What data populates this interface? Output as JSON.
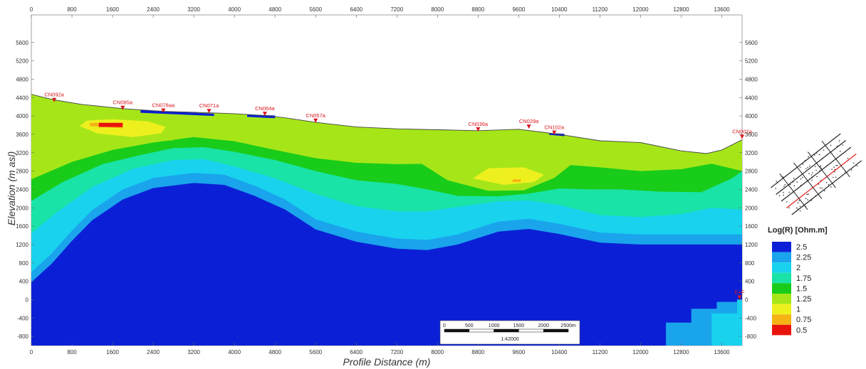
{
  "chart_data": {
    "type": "heatmap",
    "xlabel": "Profile Distance (m)",
    "ylabel": "Elevation (m asl)",
    "xlim": [
      0,
      14000
    ],
    "ylim": [
      -1000,
      6200
    ],
    "x_ticks": [
      0,
      800,
      1600,
      2400,
      3200,
      4000,
      4800,
      5600,
      6400,
      7200,
      8000,
      8800,
      9600,
      10400,
      11200,
      12000,
      12800,
      13600
    ],
    "y_ticks": [
      -800,
      -400,
      0,
      400,
      800,
      1200,
      1600,
      2000,
      2400,
      2800,
      3200,
      3600,
      4000,
      4400,
      4800,
      5200,
      5600
    ],
    "grid": false,
    "colorbar": {
      "title": "Log(R) [Ohm.m]",
      "labels": [
        "2.5",
        "2.25",
        "2",
        "1.75",
        "1.5",
        "1.25",
        "1",
        "0.75",
        "0.5"
      ],
      "colors": [
        "#0b20d6",
        "#1aa4ec",
        "#19d2ee",
        "#19e3a6",
        "#19cc19",
        "#a6e619",
        "#eef01e",
        "#f6b414",
        "#e8140c"
      ]
    },
    "stations": [
      {
        "label": "CN092a",
        "x": 450,
        "y": 4300
      },
      {
        "label": "CN085a",
        "x": 1800,
        "y": 4130
      },
      {
        "label": "CN078aa",
        "x": 2600,
        "y": 4070
      },
      {
        "label": "CN071a",
        "x": 3500,
        "y": 4060
      },
      {
        "label": "CN064a",
        "x": 4600,
        "y": 4000
      },
      {
        "label": "CN057a",
        "x": 5600,
        "y": 3850
      },
      {
        "label": "CN036a",
        "x": 8800,
        "y": 3660
      },
      {
        "label": "CN029a",
        "x": 9800,
        "y": 3720
      },
      {
        "label": "CN102a",
        "x": 10300,
        "y": 3590
      },
      {
        "label": "CN002a",
        "x": 14000,
        "y": 3500
      },
      {
        "label": "E+F",
        "x": 13950,
        "y": 0
      }
    ],
    "topography": [
      [
        0,
        4470
      ],
      [
        450,
        4350
      ],
      [
        1000,
        4250
      ],
      [
        1800,
        4160
      ],
      [
        2600,
        4100
      ],
      [
        3500,
        4070
      ],
      [
        4000,
        4050
      ],
      [
        4600,
        4010
      ],
      [
        5000,
        3960
      ],
      [
        5600,
        3860
      ],
      [
        6400,
        3760
      ],
      [
        7200,
        3720
      ],
      [
        8000,
        3700
      ],
      [
        8800,
        3680
      ],
      [
        9600,
        3710
      ],
      [
        10400,
        3600
      ],
      [
        11200,
        3460
      ],
      [
        12000,
        3420
      ],
      [
        12800,
        3240
      ],
      [
        13300,
        3180
      ],
      [
        13600,
        3260
      ],
      [
        14000,
        3480
      ]
    ],
    "contours": {
      "level_2.25": [
        [
          0,
          600
        ],
        [
          400,
          1000
        ],
        [
          800,
          1500
        ],
        [
          1200,
          1950
        ],
        [
          1800,
          2400
        ],
        [
          2400,
          2650
        ],
        [
          3200,
          2760
        ],
        [
          3800,
          2720
        ],
        [
          4400,
          2480
        ],
        [
          5000,
          2180
        ],
        [
          5600,
          1750
        ],
        [
          6400,
          1480
        ],
        [
          7200,
          1330
        ],
        [
          7800,
          1300
        ],
        [
          8400,
          1420
        ],
        [
          9200,
          1700
        ],
        [
          9800,
          1760
        ],
        [
          10400,
          1650
        ],
        [
          11200,
          1460
        ],
        [
          12000,
          1420
        ],
        [
          12800,
          1420
        ],
        [
          13400,
          1420
        ],
        [
          14000,
          1420
        ]
      ],
      "level_2": [
        [
          0,
          1450
        ],
        [
          500,
          1900
        ],
        [
          1200,
          2450
        ],
        [
          2000,
          2850
        ],
        [
          2800,
          3040
        ],
        [
          3400,
          3060
        ],
        [
          4000,
          2900
        ],
        [
          4800,
          2640
        ],
        [
          5600,
          2300
        ],
        [
          6400,
          2040
        ],
        [
          7200,
          1920
        ],
        [
          7800,
          1920
        ],
        [
          8400,
          2020
        ],
        [
          9200,
          2140
        ],
        [
          9800,
          2160
        ],
        [
          10400,
          2060
        ],
        [
          11200,
          1840
        ],
        [
          12000,
          1800
        ],
        [
          12800,
          1860
        ],
        [
          13400,
          2000
        ],
        [
          14000,
          1960
        ]
      ],
      "level_1.75": [
        [
          0,
          2150
        ],
        [
          600,
          2550
        ],
        [
          1400,
          2950
        ],
        [
          2200,
          3160
        ],
        [
          2800,
          3300
        ],
        [
          3400,
          3320
        ],
        [
          4000,
          3220
        ],
        [
          4800,
          3040
        ],
        [
          5600,
          2800
        ],
        [
          6400,
          2600
        ],
        [
          7200,
          2520
        ],
        [
          7800,
          2400
        ],
        [
          8400,
          2260
        ],
        [
          9200,
          2250
        ],
        [
          9800,
          2310
        ],
        [
          10400,
          2420
        ],
        [
          11000,
          2400
        ],
        [
          11600,
          2400
        ],
        [
          12400,
          2350
        ],
        [
          13200,
          2340
        ],
        [
          13800,
          2640
        ],
        [
          14000,
          2800
        ]
      ],
      "level_1.5": [
        [
          0,
          2620
        ],
        [
          800,
          3000
        ],
        [
          1600,
          3260
        ],
        [
          2400,
          3420
        ],
        [
          3200,
          3540
        ],
        [
          4000,
          3450
        ],
        [
          4800,
          3260
        ],
        [
          5600,
          3080
        ],
        [
          6400,
          2980
        ],
        [
          7200,
          2950
        ],
        [
          8000,
          2960
        ],
        [
          8800,
          2930
        ],
        [
          9600,
          2930
        ],
        [
          10400,
          2950
        ],
        [
          11200,
          2880
        ],
        [
          12000,
          2800
        ],
        [
          12800,
          2840
        ],
        [
          13400,
          2960
        ],
        [
          14000,
          2800
        ]
      ],
      "patch_1.25_west": [
        [
          700,
          3770
        ],
        [
          1300,
          3500
        ],
        [
          2100,
          3410
        ],
        [
          2800,
          3470
        ],
        [
          3000,
          3680
        ],
        [
          2700,
          3920
        ],
        [
          2000,
          4020
        ],
        [
          1200,
          3980
        ],
        [
          800,
          3900
        ]
      ],
      "patch_1.25_mid": [
        [
          4200,
          3860
        ],
        [
          5000,
          3880
        ],
        [
          5500,
          3700
        ],
        [
          5100,
          3470
        ],
        [
          4400,
          3460
        ],
        [
          4100,
          3600
        ]
      ],
      "patch_1.25_east": [
        [
          7700,
          2950
        ],
        [
          8200,
          2600
        ],
        [
          9000,
          2370
        ],
        [
          9700,
          2380
        ],
        [
          10300,
          2650
        ],
        [
          10700,
          3000
        ],
        [
          10600,
          3320
        ],
        [
          9800,
          3440
        ],
        [
          8600,
          3460
        ],
        [
          7900,
          3300
        ]
      ],
      "patch_1_west": [
        [
          950,
          3780
        ],
        [
          1300,
          3620
        ],
        [
          2000,
          3540
        ],
        [
          2550,
          3620
        ],
        [
          2650,
          3760
        ],
        [
          2300,
          3880
        ],
        [
          1600,
          3930
        ],
        [
          1100,
          3900
        ]
      ],
      "patch_1_east": [
        [
          8700,
          2640
        ],
        [
          9300,
          2500
        ],
        [
          9900,
          2560
        ],
        [
          10100,
          2720
        ],
        [
          9700,
          2880
        ],
        [
          9000,
          2860
        ]
      ],
      "patch_0.75": [
        [
          1150,
          3780
        ],
        [
          1800,
          3730
        ],
        [
          1800,
          3850
        ],
        [
          1150,
          3850
        ]
      ],
      "patch_0.5": [
        [
          1330,
          3760
        ],
        [
          1800,
          3760
        ],
        [
          1800,
          3850
        ],
        [
          1330,
          3850
        ]
      ],
      "patch_0.75_b": [
        [
          9480,
          2620
        ],
        [
          9640,
          2620
        ],
        [
          9640,
          2560
        ],
        [
          9480,
          2560
        ]
      ],
      "shallow_blue_1": [
        [
          2150,
          4070
        ],
        [
          3600,
          4000
        ],
        [
          3600,
          4050
        ],
        [
          2150,
          4130
        ]
      ],
      "shallow_blue_2": [
        [
          4250,
          3980
        ],
        [
          4800,
          3950
        ],
        [
          4800,
          4010
        ],
        [
          4250,
          4030
        ]
      ],
      "shallow_blue_3": [
        [
          10200,
          3590
        ],
        [
          10500,
          3560
        ],
        [
          10500,
          3610
        ],
        [
          10200,
          3630
        ]
      ],
      "corner_lightblue": [
        [
          12500,
          -1000
        ],
        [
          12500,
          -500
        ],
        [
          13000,
          -500
        ],
        [
          13000,
          -200
        ],
        [
          13500,
          -200
        ],
        [
          13500,
          -50
        ],
        [
          13900,
          -50
        ],
        [
          13900,
          -1000
        ]
      ],
      "corner_cyan": [
        [
          13400,
          -1000
        ],
        [
          13400,
          -300
        ],
        [
          13900,
          -300
        ],
        [
          13900,
          0
        ],
        [
          14000,
          0
        ],
        [
          14000,
          -1000
        ]
      ]
    },
    "scale_bar": {
      "labels": [
        "0",
        "500",
        "1000",
        "1500",
        "2000",
        "2500m"
      ],
      "scale_text": "1:42000"
    }
  }
}
